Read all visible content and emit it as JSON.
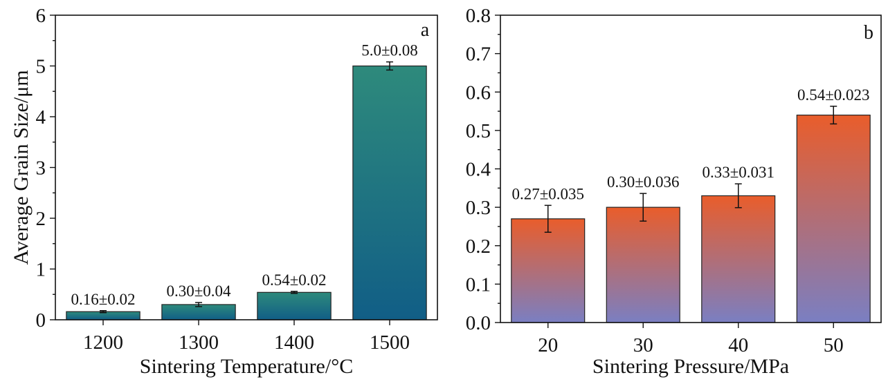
{
  "chart_data": [
    {
      "type": "bar",
      "panel_label": "a",
      "categories": [
        "1200",
        "1300",
        "1400",
        "1500"
      ],
      "values": [
        0.16,
        0.3,
        0.54,
        5.0
      ],
      "errors": [
        0.02,
        0.04,
        0.02,
        0.08
      ],
      "value_labels": [
        "0.16±0.02",
        "0.30±0.04",
        "0.54±0.02",
        "5.0±0.08"
      ],
      "xlabel": "Sintering Temperature/°C",
      "ylabel": "Average Grain Size/μm",
      "ylim": [
        0,
        6
      ],
      "yticks": [
        "0",
        "1",
        "2",
        "3",
        "4",
        "5",
        "6"
      ],
      "grid": false,
      "colors": {
        "gradient_top": "#2e8a7c",
        "gradient_bottom": "#115e86"
      }
    },
    {
      "type": "bar",
      "panel_label": "b",
      "categories": [
        "20",
        "30",
        "40",
        "50"
      ],
      "values": [
        0.27,
        0.3,
        0.33,
        0.54
      ],
      "errors": [
        0.035,
        0.036,
        0.031,
        0.023
      ],
      "value_labels": [
        "0.27±0.035",
        "0.30±0.036",
        "0.33±0.031",
        "0.54±0.023"
      ],
      "xlabel": "Sintering Pressure/MPa",
      "ylabel": "",
      "ylim": [
        0,
        0.8
      ],
      "yticks": [
        "0.0",
        "0.1",
        "0.2",
        "0.3",
        "0.4",
        "0.5",
        "0.6",
        "0.7",
        "0.8"
      ],
      "grid": false,
      "colors": {
        "gradient_top": "#e95d2b",
        "gradient_bottom": "#7a7fc2"
      }
    }
  ]
}
